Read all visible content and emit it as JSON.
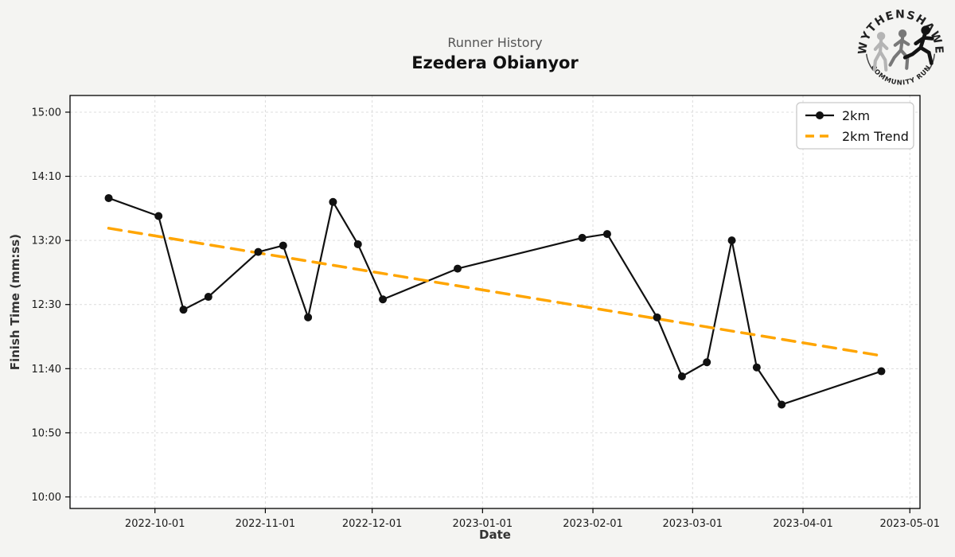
{
  "header": {
    "title": "Runner History",
    "runner_name": "Ezedera Obianyor"
  },
  "logo": {
    "top_text": "WYTHENSHAWE",
    "bottom_text": "COMMUNITY RUN"
  },
  "colors": {
    "background": "#f4f4f2",
    "plot_bg": "#ffffff",
    "grid": "#dcdcdc",
    "frame": "#000000",
    "series_2km": "#111111",
    "trend": "#ffa500"
  },
  "chart_data": {
    "type": "line",
    "title": "Runner History",
    "subtitle": "Ezedera Obianyor",
    "xlabel": "Date",
    "ylabel": "Finish Time (mm:ss)",
    "grid": true,
    "legend_position": "upper right",
    "x": [
      "2022-09-18",
      "2022-10-02",
      "2022-10-09",
      "2022-10-16",
      "2022-10-30",
      "2022-11-06",
      "2022-11-13",
      "2022-11-20",
      "2022-11-27",
      "2022-12-04",
      "2022-12-25",
      "2023-01-29",
      "2023-02-05",
      "2023-02-19",
      "2023-02-26",
      "2023-03-05",
      "2023-03-12",
      "2023-03-19",
      "2023-03-26",
      "2023-04-23"
    ],
    "series": [
      {
        "name": "2km",
        "style": "solid-line-with-circle-markers",
        "color": "#111111",
        "values": [
          "13:53",
          "13:39",
          "12:26",
          "12:36",
          "13:11",
          "13:16",
          "12:20",
          "13:50",
          "13:17",
          "12:34",
          "12:58",
          "13:22",
          "13:25",
          "12:20",
          "11:34",
          "11:45",
          "13:20",
          "11:41",
          "11:12",
          "11:38"
        ]
      },
      {
        "name": "2km Trend",
        "style": "dashed-line",
        "color": "#ffa500",
        "derived": "linear-least-squares-fit-of-2km",
        "endpoints_approx": [
          "13:29",
          "11:50"
        ]
      }
    ],
    "yticks": [
      "15:00",
      "14:10",
      "13:20",
      "12:30",
      "11:40",
      "10:50",
      "10:00"
    ],
    "ylim_seconds": [
      591,
      913
    ],
    "xticks": [
      "2022-10-01",
      "2022-11-01",
      "2022-12-01",
      "2023-01-01",
      "2023-02-01",
      "2023-03-01",
      "2023-04-01",
      "2023-05-01"
    ]
  }
}
